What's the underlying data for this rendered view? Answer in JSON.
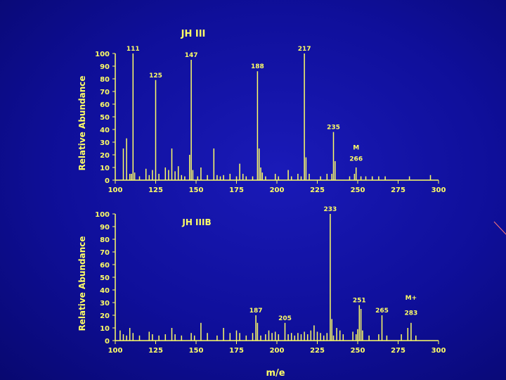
{
  "colors": {
    "background": "#1212a8",
    "foreground": "#ffff66"
  },
  "chart_data": [
    {
      "type": "bar",
      "title": "JH III",
      "ylabel": "Relative Abundance",
      "xlabel": "",
      "xlim": [
        100,
        300
      ],
      "ylim": [
        0,
        100
      ],
      "xticks": [
        100,
        125,
        150,
        175,
        200,
        225,
        250,
        275,
        300
      ],
      "yticks": [
        0,
        10,
        20,
        30,
        40,
        50,
        60,
        70,
        80,
        90,
        100
      ],
      "peaks": [
        [
          105,
          25
        ],
        [
          107,
          33
        ],
        [
          109,
          5
        ],
        [
          110,
          5
        ],
        [
          111,
          100
        ],
        [
          112,
          6
        ],
        [
          115,
          3
        ],
        [
          119,
          9
        ],
        [
          121,
          4
        ],
        [
          123,
          8
        ],
        [
          125,
          79
        ],
        [
          127,
          5
        ],
        [
          131,
          10
        ],
        [
          133,
          8
        ],
        [
          135,
          25
        ],
        [
          137,
          7
        ],
        [
          139,
          11
        ],
        [
          141,
          4
        ],
        [
          143,
          3
        ],
        [
          146,
          20
        ],
        [
          147,
          95
        ],
        [
          148,
          8
        ],
        [
          151,
          3
        ],
        [
          153,
          10
        ],
        [
          157,
          4
        ],
        [
          161,
          25
        ],
        [
          163,
          4
        ],
        [
          165,
          3
        ],
        [
          167,
          4
        ],
        [
          171,
          5
        ],
        [
          175,
          3
        ],
        [
          177,
          13
        ],
        [
          179,
          5
        ],
        [
          181,
          3
        ],
        [
          185,
          3
        ],
        [
          188,
          86
        ],
        [
          189,
          25
        ],
        [
          190,
          10
        ],
        [
          191,
          6
        ],
        [
          193,
          3
        ],
        [
          199,
          5
        ],
        [
          201,
          3
        ],
        [
          207,
          8
        ],
        [
          209,
          3
        ],
        [
          213,
          5
        ],
        [
          215,
          3
        ],
        [
          217,
          100
        ],
        [
          218,
          18
        ],
        [
          220,
          5
        ],
        [
          227,
          3
        ],
        [
          231,
          5
        ],
        [
          234,
          5
        ],
        [
          235,
          38
        ],
        [
          236,
          15
        ],
        [
          245,
          3
        ],
        [
          248,
          5
        ],
        [
          249,
          10
        ],
        [
          252,
          3
        ],
        [
          255,
          3
        ],
        [
          259,
          3
        ],
        [
          263,
          3
        ],
        [
          267,
          3
        ],
        [
          282,
          3
        ],
        [
          295,
          4
        ]
      ],
      "labels": [
        {
          "x": 111,
          "text": "111",
          "pos": "top"
        },
        {
          "x": 125,
          "text": "125",
          "pos": "top"
        },
        {
          "x": 147,
          "text": "147",
          "pos": "top"
        },
        {
          "x": 188,
          "text": "188",
          "pos": "top"
        },
        {
          "x": 217,
          "text": "217",
          "pos": "top"
        },
        {
          "x": 235,
          "text": "235",
          "pos": "top"
        },
        {
          "x": 249,
          "text": "M",
          "pos": "top",
          "y": 22
        },
        {
          "x": 249,
          "text": "266",
          "pos": "top",
          "y": 13
        }
      ]
    },
    {
      "type": "bar",
      "title": "JH IIIB",
      "ylabel": "Relative Abundance",
      "xlabel": "m/e",
      "xlim": [
        100,
        300
      ],
      "ylim": [
        0,
        100
      ],
      "xticks": [
        100,
        125,
        150,
        175,
        200,
        225,
        250,
        275,
        300
      ],
      "yticks": [
        0,
        10,
        20,
        30,
        40,
        50,
        60,
        70,
        80,
        90,
        100
      ],
      "peaks": [
        [
          103,
          8
        ],
        [
          105,
          5
        ],
        [
          107,
          4
        ],
        [
          109,
          10
        ],
        [
          111,
          6
        ],
        [
          115,
          4
        ],
        [
          121,
          7
        ],
        [
          123,
          5
        ],
        [
          127,
          4
        ],
        [
          131,
          5
        ],
        [
          135,
          10
        ],
        [
          137,
          5
        ],
        [
          141,
          4
        ],
        [
          147,
          6
        ],
        [
          149,
          4
        ],
        [
          153,
          14
        ],
        [
          157,
          6
        ],
        [
          163,
          4
        ],
        [
          167,
          10
        ],
        [
          171,
          6
        ],
        [
          175,
          8
        ],
        [
          177,
          6
        ],
        [
          181,
          4
        ],
        [
          185,
          6
        ],
        [
          187,
          20
        ],
        [
          188,
          14
        ],
        [
          190,
          4
        ],
        [
          193,
          5
        ],
        [
          195,
          8
        ],
        [
          197,
          6
        ],
        [
          199,
          7
        ],
        [
          201,
          5
        ],
        [
          205,
          14
        ],
        [
          207,
          5
        ],
        [
          209,
          6
        ],
        [
          211,
          4
        ],
        [
          213,
          6
        ],
        [
          215,
          5
        ],
        [
          217,
          7
        ],
        [
          219,
          5
        ],
        [
          221,
          8
        ],
        [
          223,
          12
        ],
        [
          225,
          7
        ],
        [
          227,
          6
        ],
        [
          229,
          4
        ],
        [
          231,
          6
        ],
        [
          233,
          100
        ],
        [
          234,
          17
        ],
        [
          235,
          4
        ],
        [
          237,
          10
        ],
        [
          239,
          8
        ],
        [
          241,
          5
        ],
        [
          247,
          7
        ],
        [
          249,
          5
        ],
        [
          250,
          9
        ],
        [
          251,
          28
        ],
        [
          252,
          25
        ],
        [
          253,
          8
        ],
        [
          257,
          4
        ],
        [
          263,
          5
        ],
        [
          265,
          20
        ],
        [
          268,
          4
        ],
        [
          277,
          5
        ],
        [
          281,
          10
        ],
        [
          283,
          14
        ],
        [
          286,
          4
        ]
      ],
      "labels": [
        {
          "x": 233,
          "text": "233",
          "pos": "top"
        },
        {
          "x": 251,
          "text": "251",
          "pos": "top"
        },
        {
          "x": 187,
          "text": "187",
          "pos": "top"
        },
        {
          "x": 205,
          "text": "205",
          "pos": "top"
        },
        {
          "x": 265,
          "text": "265",
          "pos": "top"
        },
        {
          "x": 283,
          "text": "M+",
          "pos": "top",
          "y": 30
        },
        {
          "x": 283,
          "text": "283",
          "pos": "top",
          "y": 18
        }
      ]
    }
  ]
}
